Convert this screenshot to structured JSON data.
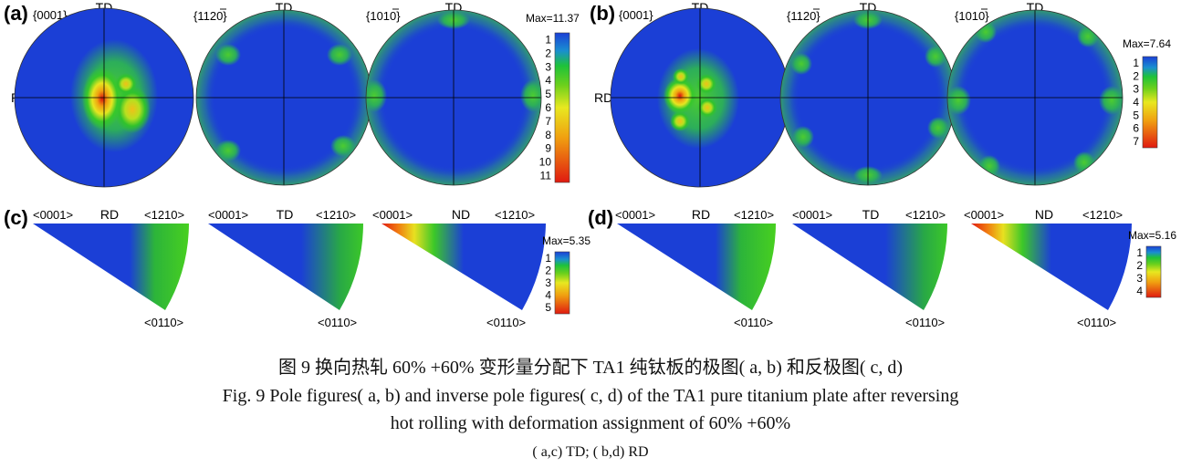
{
  "figure": {
    "panels": {
      "a": {
        "label": "(a)",
        "pole_figures": [
          {
            "plane": "{0001}",
            "direction_top": "TD",
            "direction_left": "RD"
          },
          {
            "plane": "{1120}",
            "plane_overline_digit": 3,
            "direction_top": "TD"
          },
          {
            "plane": "{1010}",
            "plane_overline_digit": 3,
            "direction_top": "TD"
          }
        ],
        "colorbar": {
          "max_label": "Max=11.37",
          "ticks": [
            "1",
            "2",
            "3",
            "4",
            "5",
            "6",
            "7",
            "8",
            "9",
            "10",
            "11"
          ]
        }
      },
      "b": {
        "label": "(b)",
        "pole_figures": [
          {
            "plane": "{0001}",
            "direction_top": "TD",
            "direction_left": "RD"
          },
          {
            "plane": "{1120}",
            "plane_overline_digit": 3,
            "direction_top": "TD"
          },
          {
            "plane": "{1010}",
            "plane_overline_digit": 3,
            "direction_top": "TD"
          }
        ],
        "colorbar": {
          "max_label": "Max=7.64",
          "ticks": [
            "1",
            "2",
            "3",
            "4",
            "5",
            "6",
            "7"
          ]
        }
      },
      "c": {
        "label": "(c)",
        "ipf": [
          {
            "direction": "RD",
            "corner_left": "<0001>",
            "corner_right": "<1210>",
            "corner_bottom": "<0110>"
          },
          {
            "direction": "TD",
            "corner_left": "<0001>",
            "corner_right": "<1210>",
            "corner_bottom": "<0110>"
          },
          {
            "direction": "ND",
            "corner_left": "<0001>",
            "corner_right": "<1210>",
            "corner_bottom": "<0110>"
          }
        ],
        "colorbar": {
          "max_label": "Max=5.35",
          "ticks": [
            "1",
            "2",
            "3",
            "4",
            "5"
          ]
        }
      },
      "d": {
        "label": "(d)",
        "ipf": [
          {
            "direction": "RD",
            "corner_left": "<0001>",
            "corner_right": "<1210>",
            "corner_bottom": "<0110>"
          },
          {
            "direction": "TD",
            "corner_left": "<0001>",
            "corner_right": "<1210>",
            "corner_bottom": "<0110>"
          },
          {
            "direction": "ND",
            "corner_left": "<0001>",
            "corner_right": "<1210>",
            "corner_bottom": "<0110>"
          }
        ],
        "colorbar": {
          "max_label": "Max=5.16",
          "ticks": [
            "1",
            "2",
            "3",
            "4"
          ]
        }
      }
    }
  },
  "caption": {
    "chinese": "图 9   换向热轧 60% +60% 变形量分配下 TA1 纯钛板的极图( a, b) 和反极图( c, d)",
    "english_line1": "Fig. 9   Pole figures( a, b)  and inverse pole figures( c, d)  of the TA1 pure titanium plate after reversing",
    "english_line2": "hot rolling with deformation assignment of 60% +60%",
    "note": "( a,c)  TD;  ( b,d)  RD"
  },
  "colors": {
    "blue": "#1b3fd6",
    "green": "#22c81e",
    "yellow": "#e8e820",
    "orange": "#f08a10",
    "red": "#e01a10"
  }
}
